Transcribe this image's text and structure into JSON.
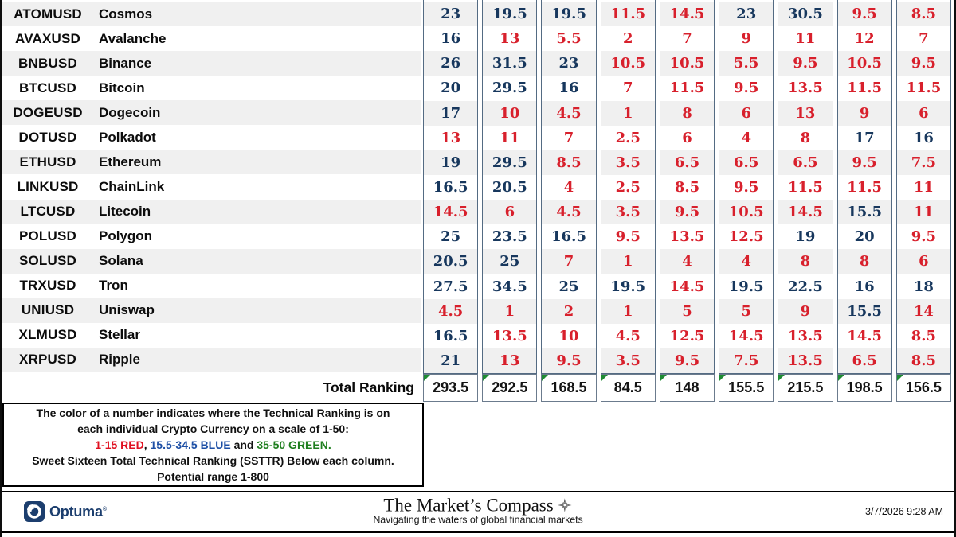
{
  "colors": {
    "red": "#d8202c",
    "blue": "#17375d",
    "green": "#1e7e1e",
    "stripe": "#f0f0f0",
    "column_border": "#546b83",
    "note_black": "#111111",
    "note_red": "#e01020",
    "note_blue": "#1d4fa5",
    "note_green": "#1e7e1e",
    "navy": "#1c3e6e",
    "triangle_green": "#1f8b33"
  },
  "chart_data": {
    "type": "table",
    "num_value_columns": 9,
    "value_color_thresholds": {
      "red_max": 15,
      "blue_max": 34.5,
      "green_max": 50
    },
    "rows": [
      {
        "ticker": "ATOMUSD",
        "name": "Cosmos",
        "values": [
          23,
          19.5,
          19.5,
          11.5,
          14.5,
          23,
          30.5,
          9.5,
          8.5
        ]
      },
      {
        "ticker": "AVAXUSD",
        "name": "Avalanche",
        "values": [
          16,
          13,
          5.5,
          2,
          7,
          9,
          11,
          12,
          7
        ]
      },
      {
        "ticker": "BNBUSD",
        "name": "Binance",
        "values": [
          26,
          31.5,
          23,
          10.5,
          10.5,
          5.5,
          9.5,
          10.5,
          9.5
        ]
      },
      {
        "ticker": "BTCUSD",
        "name": "Bitcoin",
        "values": [
          20,
          29.5,
          16,
          7,
          11.5,
          9.5,
          13.5,
          11.5,
          11.5
        ]
      },
      {
        "ticker": "DOGEUSD",
        "name": "Dogecoin",
        "values": [
          17,
          10,
          4.5,
          1,
          8,
          6,
          13,
          9,
          6
        ]
      },
      {
        "ticker": "DOTUSD",
        "name": "Polkadot",
        "values": [
          13,
          11,
          7,
          2.5,
          6,
          4,
          8,
          17,
          16
        ]
      },
      {
        "ticker": "ETHUSD",
        "name": "Ethereum",
        "values": [
          19,
          29.5,
          8.5,
          3.5,
          6.5,
          6.5,
          6.5,
          9.5,
          7.5
        ]
      },
      {
        "ticker": "LINKUSD",
        "name": "ChainLink",
        "values": [
          16.5,
          20.5,
          4,
          2.5,
          8.5,
          9.5,
          11.5,
          11.5,
          11
        ]
      },
      {
        "ticker": "LTCUSD",
        "name": "Litecoin",
        "values": [
          14.5,
          6,
          4.5,
          3.5,
          9.5,
          10.5,
          14.5,
          15.5,
          11
        ]
      },
      {
        "ticker": "POLUSD",
        "name": "Polygon",
        "values": [
          25,
          23.5,
          16.5,
          9.5,
          13.5,
          12.5,
          19,
          20,
          9.5
        ]
      },
      {
        "ticker": "SOLUSD",
        "name": "Solana",
        "values": [
          20.5,
          25,
          7,
          1,
          4,
          4,
          8,
          8,
          6
        ]
      },
      {
        "ticker": "TRXUSD",
        "name": "Tron",
        "values": [
          27.5,
          34.5,
          25,
          19.5,
          14.5,
          19.5,
          22.5,
          16,
          18
        ]
      },
      {
        "ticker": "UNIUSD",
        "name": "Uniswap",
        "values": [
          4.5,
          1,
          2,
          1,
          5,
          5,
          9,
          15.5,
          14
        ]
      },
      {
        "ticker": "XLMUSD",
        "name": "Stellar",
        "values": [
          16.5,
          13.5,
          10,
          4.5,
          12.5,
          14.5,
          13.5,
          14.5,
          8.5
        ]
      },
      {
        "ticker": "XRPUSD",
        "name": "Ripple",
        "values": [
          21,
          13,
          9.5,
          3.5,
          9.5,
          7.5,
          13.5,
          6.5,
          8.5
        ]
      }
    ],
    "total_label": "Total Ranking",
    "totals": [
      293.5,
      292.5,
      168.5,
      84.5,
      148,
      155.5,
      215.5,
      198.5,
      156.5
    ]
  },
  "note": {
    "lines": [
      [
        {
          "t": "The color of a number indicates where the Technical Ranking is on",
          "c": "black"
        }
      ],
      [
        {
          "t": "each individual Crypto Currency on a scale of 1-50:",
          "c": "black"
        }
      ],
      [
        {
          "t": "1-15 RED",
          "c": "red"
        },
        {
          "t": ", ",
          "c": "black"
        },
        {
          "t": "15.5-34.5 BLUE",
          "c": "blue"
        },
        {
          "t": " and ",
          "c": "black"
        },
        {
          "t": "35-50 GREEN.",
          "c": "green"
        }
      ],
      [
        {
          "t": "Sweet Sixteen Total Technical Ranking (SSTTR) Below each column.",
          "c": "black"
        }
      ],
      [
        {
          "t": "Potential range 1-800",
          "c": "black"
        }
      ]
    ]
  },
  "footer": {
    "brand": "Optuma",
    "brand_mark": "®",
    "title": "The Market’s Compass",
    "tagline": "Navigating the waters of global financial markets",
    "datetime": "3/7/2026 9:28 AM"
  }
}
